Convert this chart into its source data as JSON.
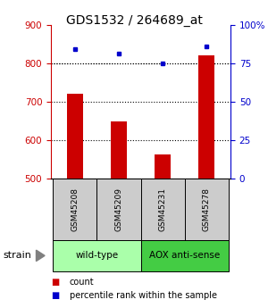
{
  "title": "GDS1532 / 264689_at",
  "samples": [
    "GSM45208",
    "GSM45209",
    "GSM45231",
    "GSM45278"
  ],
  "count_values": [
    720,
    648,
    563,
    820
  ],
  "percentile_values": [
    84,
    81,
    75,
    86
  ],
  "ylim_left": [
    500,
    900
  ],
  "ylim_right": [
    0,
    100
  ],
  "left_ticks": [
    500,
    600,
    700,
    800,
    900
  ],
  "right_ticks": [
    0,
    25,
    50,
    75,
    100
  ],
  "right_tick_labels": [
    "0",
    "25",
    "50",
    "75",
    "100%"
  ],
  "bar_color": "#cc0000",
  "dot_color": "#0000cc",
  "groups": [
    {
      "label": "wild-type",
      "samples": [
        0,
        1
      ],
      "color": "#aaffaa"
    },
    {
      "label": "AOX anti-sense",
      "samples": [
        2,
        3
      ],
      "color": "#44cc44"
    }
  ],
  "group_row_label": "strain",
  "legend_count_label": "count",
  "legend_percentile_label": "percentile rank within the sample",
  "sample_box_color": "#cccccc",
  "left_axis_color": "#cc0000",
  "right_axis_color": "#0000cc",
  "bar_width": 0.35
}
